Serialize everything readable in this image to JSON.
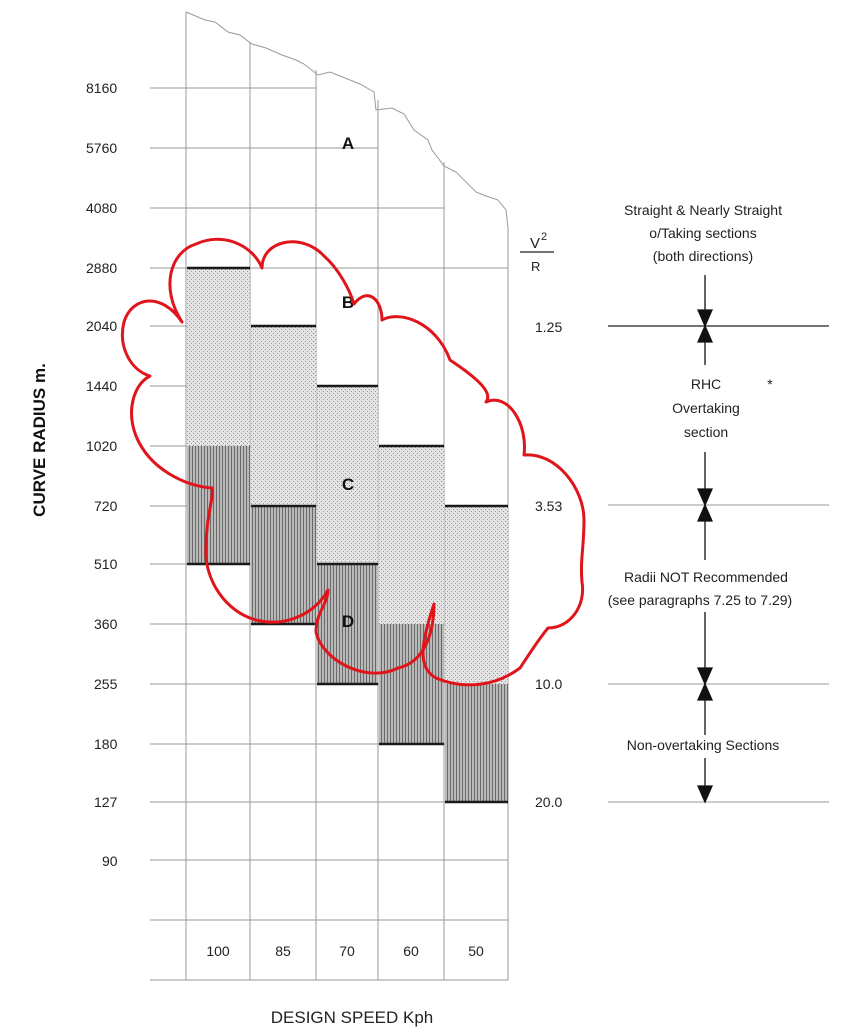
{
  "y_axis": {
    "title": "CURVE RADIUS m.",
    "ticks": [
      "8160",
      "5760",
      "4080",
      "2880",
      "2040",
      "1440",
      "1020",
      "720",
      "510",
      "360",
      "255",
      "180",
      "127",
      "90"
    ]
  },
  "x_axis": {
    "title": "DESIGN SPEED Kph",
    "speeds": [
      "100",
      "85",
      "70",
      "60",
      "50"
    ]
  },
  "zones": [
    "A",
    "B",
    "C",
    "D"
  ],
  "ratio": {
    "numerator": "V",
    "exponent": "2",
    "denominator": "R",
    "levels": [
      "1.25",
      "3.53",
      "10.0",
      "20.0"
    ]
  },
  "annotations": {
    "straight": [
      "Straight & Nearly Straight",
      "o/Taking sections",
      "(both directions)"
    ],
    "rhc": [
      "RHC",
      "Overtaking",
      "section"
    ],
    "asterisk": "*",
    "not_recommended": [
      "Radii NOT Recommended",
      "(see paragraphs 7.25 to 7.29)"
    ],
    "non_overtaking": "Non-overtaking Sections"
  },
  "colors": {
    "cloud": "#e0151b",
    "light_band": "#e4e4e4",
    "dark_band": "#a8a8a8",
    "grid": "#9a9a9a"
  }
}
